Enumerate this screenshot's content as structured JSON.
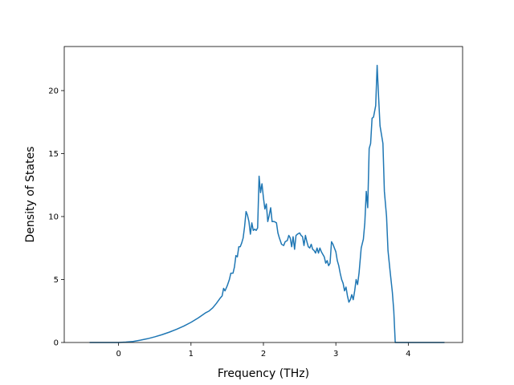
{
  "chart_data": {
    "type": "line",
    "title": "",
    "xlabel": "Frequency (THz)",
    "ylabel": "Density of States",
    "xlim": [
      -0.75,
      4.75
    ],
    "ylim": [
      0,
      23.5
    ],
    "xticks": [
      0,
      1,
      2,
      3,
      4
    ],
    "yticks": [
      0,
      5,
      10,
      15,
      20
    ],
    "grid": false,
    "legend": "none",
    "series": [
      {
        "color": "#1f77b4",
        "points": [
          [
            -0.4,
            0
          ],
          [
            0.0,
            0.0
          ],
          [
            0.1,
            0.03
          ],
          [
            0.2,
            0.08
          ],
          [
            0.3,
            0.18
          ],
          [
            0.4,
            0.3
          ],
          [
            0.5,
            0.45
          ],
          [
            0.6,
            0.62
          ],
          [
            0.7,
            0.82
          ],
          [
            0.8,
            1.05
          ],
          [
            0.9,
            1.3
          ],
          [
            1.0,
            1.6
          ],
          [
            1.1,
            1.95
          ],
          [
            1.15,
            2.15
          ],
          [
            1.2,
            2.35
          ],
          [
            1.25,
            2.5
          ],
          [
            1.3,
            2.75
          ],
          [
            1.35,
            3.1
          ],
          [
            1.4,
            3.5
          ],
          [
            1.43,
            3.7
          ],
          [
            1.45,
            4.3
          ],
          [
            1.47,
            4.1
          ],
          [
            1.5,
            4.5
          ],
          [
            1.53,
            5.0
          ],
          [
            1.55,
            5.5
          ],
          [
            1.58,
            5.5
          ],
          [
            1.6,
            6.0
          ],
          [
            1.62,
            6.9
          ],
          [
            1.64,
            6.8
          ],
          [
            1.66,
            7.6
          ],
          [
            1.68,
            7.6
          ],
          [
            1.7,
            7.9
          ],
          [
            1.72,
            8.3
          ],
          [
            1.74,
            9.2
          ],
          [
            1.76,
            10.4
          ],
          [
            1.78,
            10.1
          ],
          [
            1.8,
            9.6
          ],
          [
            1.82,
            8.6
          ],
          [
            1.84,
            9.5
          ],
          [
            1.86,
            8.9
          ],
          [
            1.88,
            9.0
          ],
          [
            1.9,
            8.9
          ],
          [
            1.92,
            9.1
          ],
          [
            1.94,
            13.2
          ],
          [
            1.96,
            11.9
          ],
          [
            1.98,
            12.6
          ],
          [
            2.0,
            11.5
          ],
          [
            2.02,
            10.6
          ],
          [
            2.04,
            11.0
          ],
          [
            2.06,
            9.6
          ],
          [
            2.08,
            10.1
          ],
          [
            2.1,
            10.7
          ],
          [
            2.12,
            9.6
          ],
          [
            2.15,
            9.6
          ],
          [
            2.18,
            9.5
          ],
          [
            2.2,
            8.7
          ],
          [
            2.22,
            8.3
          ],
          [
            2.25,
            7.8
          ],
          [
            2.28,
            7.7
          ],
          [
            2.3,
            8.0
          ],
          [
            2.33,
            8.1
          ],
          [
            2.35,
            8.5
          ],
          [
            2.37,
            8.3
          ],
          [
            2.39,
            7.6
          ],
          [
            2.41,
            8.4
          ],
          [
            2.43,
            7.4
          ],
          [
            2.45,
            8.5
          ],
          [
            2.47,
            8.6
          ],
          [
            2.5,
            8.7
          ],
          [
            2.52,
            8.5
          ],
          [
            2.54,
            8.4
          ],
          [
            2.56,
            7.7
          ],
          [
            2.58,
            8.5
          ],
          [
            2.6,
            8.0
          ],
          [
            2.62,
            7.6
          ],
          [
            2.64,
            7.5
          ],
          [
            2.66,
            7.8
          ],
          [
            2.68,
            7.4
          ],
          [
            2.7,
            7.3
          ],
          [
            2.72,
            7.1
          ],
          [
            2.74,
            7.5
          ],
          [
            2.76,
            7.1
          ],
          [
            2.78,
            7.5
          ],
          [
            2.8,
            7.2
          ],
          [
            2.82,
            7.0
          ],
          [
            2.84,
            6.8
          ],
          [
            2.86,
            6.3
          ],
          [
            2.88,
            6.5
          ],
          [
            2.9,
            6.1
          ],
          [
            2.92,
            6.3
          ],
          [
            2.94,
            8.0
          ],
          [
            2.96,
            7.8
          ],
          [
            2.98,
            7.5
          ],
          [
            3.0,
            7.2
          ],
          [
            3.02,
            6.5
          ],
          [
            3.04,
            6.1
          ],
          [
            3.06,
            5.5
          ],
          [
            3.08,
            5.0
          ],
          [
            3.1,
            4.7
          ],
          [
            3.12,
            4.1
          ],
          [
            3.14,
            4.4
          ],
          [
            3.16,
            3.7
          ],
          [
            3.18,
            3.2
          ],
          [
            3.2,
            3.4
          ],
          [
            3.22,
            3.8
          ],
          [
            3.24,
            3.4
          ],
          [
            3.26,
            4.1
          ],
          [
            3.28,
            5.0
          ],
          [
            3.3,
            4.6
          ],
          [
            3.32,
            5.5
          ],
          [
            3.35,
            7.5
          ],
          [
            3.38,
            8.2
          ],
          [
            3.4,
            9.5
          ],
          [
            3.42,
            12.0
          ],
          [
            3.44,
            10.7
          ],
          [
            3.46,
            15.4
          ],
          [
            3.48,
            15.8
          ],
          [
            3.5,
            17.8
          ],
          [
            3.52,
            17.9
          ],
          [
            3.55,
            18.8
          ],
          [
            3.57,
            22.0
          ],
          [
            3.59,
            19.5
          ],
          [
            3.61,
            17.2
          ],
          [
            3.63,
            16.5
          ],
          [
            3.65,
            15.8
          ],
          [
            3.67,
            12.0
          ],
          [
            3.7,
            10.0
          ],
          [
            3.72,
            7.3
          ],
          [
            3.75,
            5.6
          ],
          [
            3.78,
            4.0
          ],
          [
            3.8,
            2.5
          ],
          [
            3.82,
            0.0
          ],
          [
            3.85,
            0.0
          ],
          [
            4.0,
            0.0
          ],
          [
            4.2,
            0.0
          ],
          [
            4.5,
            0.0
          ]
        ]
      }
    ]
  }
}
